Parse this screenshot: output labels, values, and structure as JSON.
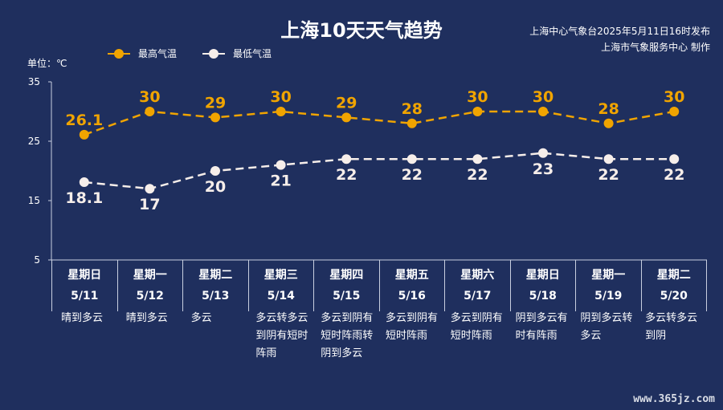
{
  "title": "上海10天天气趋势",
  "publisher": {
    "line1": "上海中心气象台2025年5月11日16时发布",
    "line2": "上海市气象服务中心 制作"
  },
  "unit_label": "单位：℃",
  "watermark": "www.365jz.com",
  "colors": {
    "background": "#1f2f5e",
    "high": "#f0a400",
    "low": "#f6eeea"
  },
  "days": [
    {
      "weekday": "星期日",
      "date": "5/11",
      "desc": "晴到多云"
    },
    {
      "weekday": "星期一",
      "date": "5/12",
      "desc": "晴到多云"
    },
    {
      "weekday": "星期二",
      "date": "5/13",
      "desc": "多云"
    },
    {
      "weekday": "星期三",
      "date": "5/14",
      "desc": "多云转多云到阴有短时阵雨"
    },
    {
      "weekday": "星期四",
      "date": "5/15",
      "desc": "多云到阴有短时阵雨转阴到多云"
    },
    {
      "weekday": "星期五",
      "date": "5/16",
      "desc": "多云到阴有短时阵雨"
    },
    {
      "weekday": "星期六",
      "date": "5/17",
      "desc": "多云到阴有短时阵雨"
    },
    {
      "weekday": "星期日",
      "date": "5/18",
      "desc": "阴到多云有时有阵雨"
    },
    {
      "weekday": "星期一",
      "date": "5/19",
      "desc": "阴到多云转多云"
    },
    {
      "weekday": "星期二",
      "date": "5/20",
      "desc": "多云转多云到阴"
    }
  ],
  "chart_data": {
    "type": "line",
    "categories": [
      "5/11",
      "5/12",
      "5/13",
      "5/14",
      "5/15",
      "5/16",
      "5/17",
      "5/18",
      "5/19",
      "5/20"
    ],
    "series": [
      {
        "name": "最高气温",
        "values": [
          26.1,
          30,
          29,
          30,
          29,
          28,
          30,
          30,
          28,
          30
        ],
        "labels": [
          "26.1",
          "30",
          "29",
          "30",
          "29",
          "28",
          "30",
          "30",
          "28",
          "30"
        ]
      },
      {
        "name": "最低气温",
        "values": [
          18.1,
          17,
          20,
          21,
          22,
          22,
          22,
          23,
          22,
          22
        ],
        "labels": [
          "18.1",
          "17",
          "20",
          "21",
          "22",
          "22",
          "22",
          "23",
          "22",
          "22"
        ]
      }
    ],
    "yticks": [
      "5",
      "15",
      "25",
      "35"
    ],
    "ylim": [
      5,
      35
    ],
    "line_style": "dashed",
    "legend_position": "top-left",
    "grid": false
  }
}
